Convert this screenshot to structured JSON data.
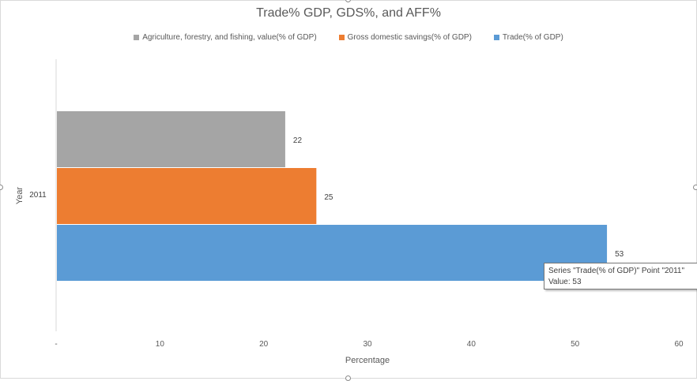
{
  "chart_data": {
    "type": "bar",
    "orientation": "horizontal",
    "title": "Trade% GDP, GDS%, and AFF%",
    "xlabel": "Percentage",
    "ylabel": "Year",
    "categories": [
      "2011"
    ],
    "xlim": [
      0,
      60
    ],
    "x_ticks": [
      "-",
      "10",
      "20",
      "30",
      "40",
      "50",
      "60"
    ],
    "legend_position": "top",
    "series": [
      {
        "name": "Agriculture, forestry, and fishing, value(% of GDP)",
        "values": [
          22
        ],
        "labels": [
          "22"
        ],
        "color": "#a5a5a5"
      },
      {
        "name": "Gross domestic savings(% of GDP)",
        "values": [
          25
        ],
        "labels": [
          "25"
        ],
        "color": "#ed7d31"
      },
      {
        "name": "Trade(% of GDP)",
        "values": [
          53
        ],
        "labels": [
          "53"
        ],
        "color": "#5b9bd5"
      }
    ]
  },
  "tooltip": {
    "line1": "Series \"Trade(% of GDP)\" Point \"2011\"",
    "line2": "Value:  53"
  }
}
